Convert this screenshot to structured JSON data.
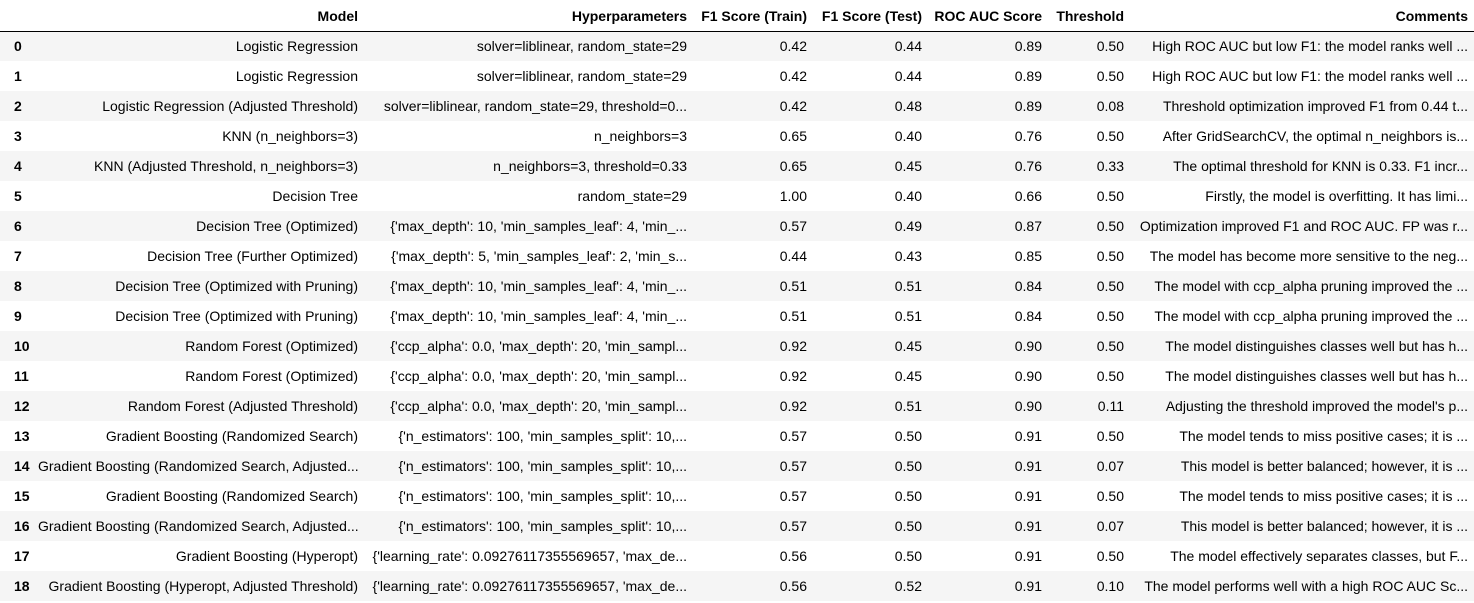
{
  "columns": {
    "index": "",
    "model": "Model",
    "hyperparameters": "Hyperparameters",
    "f1_train": "F1 Score (Train)",
    "f1_test": "F1 Score (Test)",
    "roc_auc": "ROC AUC Score",
    "threshold": "Threshold",
    "comments": "Comments"
  },
  "rows": [
    {
      "index": "0",
      "model": "Logistic Regression",
      "hyperparameters": "solver=liblinear, random_state=29",
      "f1_train": "0.42",
      "f1_test": "0.44",
      "roc_auc": "0.89",
      "threshold": "0.50",
      "comments": "High ROC AUC but low F1: the model ranks well ..."
    },
    {
      "index": "1",
      "model": "Logistic Regression",
      "hyperparameters": "solver=liblinear, random_state=29",
      "f1_train": "0.42",
      "f1_test": "0.44",
      "roc_auc": "0.89",
      "threshold": "0.50",
      "comments": "High ROC AUC but low F1: the model ranks well ..."
    },
    {
      "index": "2",
      "model": "Logistic Regression (Adjusted Threshold)",
      "hyperparameters": "solver=liblinear, random_state=29, threshold=0...",
      "f1_train": "0.42",
      "f1_test": "0.48",
      "roc_auc": "0.89",
      "threshold": "0.08",
      "comments": "Threshold optimization improved F1 from 0.44 t..."
    },
    {
      "index": "3",
      "model": "KNN (n_neighbors=3)",
      "hyperparameters": "n_neighbors=3",
      "f1_train": "0.65",
      "f1_test": "0.40",
      "roc_auc": "0.76",
      "threshold": "0.50",
      "comments": "After GridSearchCV, the optimal n_neighbors is..."
    },
    {
      "index": "4",
      "model": "KNN (Adjusted Threshold, n_neighbors=3)",
      "hyperparameters": "n_neighbors=3, threshold=0.33",
      "f1_train": "0.65",
      "f1_test": "0.45",
      "roc_auc": "0.76",
      "threshold": "0.33",
      "comments": "The optimal threshold for KNN is 0.33. F1 incr..."
    },
    {
      "index": "5",
      "model": "Decision Tree",
      "hyperparameters": "random_state=29",
      "f1_train": "1.00",
      "f1_test": "0.40",
      "roc_auc": "0.66",
      "threshold": "0.50",
      "comments": "Firstly, the model is overfitting. It has limi..."
    },
    {
      "index": "6",
      "model": "Decision Tree (Optimized)",
      "hyperparameters": "{'max_depth': 10, 'min_samples_leaf': 4, 'min_...",
      "f1_train": "0.57",
      "f1_test": "0.49",
      "roc_auc": "0.87",
      "threshold": "0.50",
      "comments": "Optimization improved F1 and ROC AUC. FP was r..."
    },
    {
      "index": "7",
      "model": "Decision Tree (Further Optimized)",
      "hyperparameters": "{'max_depth': 5, 'min_samples_leaf': 2, 'min_s...",
      "f1_train": "0.44",
      "f1_test": "0.43",
      "roc_auc": "0.85",
      "threshold": "0.50",
      "comments": "The model has become more sensitive to the neg..."
    },
    {
      "index": "8",
      "model": "Decision Tree (Optimized with Pruning)",
      "hyperparameters": "{'max_depth': 10, 'min_samples_leaf': 4, 'min_...",
      "f1_train": "0.51",
      "f1_test": "0.51",
      "roc_auc": "0.84",
      "threshold": "0.50",
      "comments": "The model with ccp_alpha pruning improved the ..."
    },
    {
      "index": "9",
      "model": "Decision Tree (Optimized with Pruning)",
      "hyperparameters": "{'max_depth': 10, 'min_samples_leaf': 4, 'min_...",
      "f1_train": "0.51",
      "f1_test": "0.51",
      "roc_auc": "0.84",
      "threshold": "0.50",
      "comments": "The model with ccp_alpha pruning improved the ..."
    },
    {
      "index": "10",
      "model": "Random Forest (Optimized)",
      "hyperparameters": "{'ccp_alpha': 0.0, 'max_depth': 20, 'min_sampl...",
      "f1_train": "0.92",
      "f1_test": "0.45",
      "roc_auc": "0.90",
      "threshold": "0.50",
      "comments": "The model distinguishes classes well but has h..."
    },
    {
      "index": "11",
      "model": "Random Forest (Optimized)",
      "hyperparameters": "{'ccp_alpha': 0.0, 'max_depth': 20, 'min_sampl...",
      "f1_train": "0.92",
      "f1_test": "0.45",
      "roc_auc": "0.90",
      "threshold": "0.50",
      "comments": "The model distinguishes classes well but has h..."
    },
    {
      "index": "12",
      "model": "Random Forest (Adjusted Threshold)",
      "hyperparameters": "{'ccp_alpha': 0.0, 'max_depth': 20, 'min_sampl...",
      "f1_train": "0.92",
      "f1_test": "0.51",
      "roc_auc": "0.90",
      "threshold": "0.11",
      "comments": "Adjusting the threshold improved the model's p..."
    },
    {
      "index": "13",
      "model": "Gradient Boosting (Randomized Search)",
      "hyperparameters": "{'n_estimators': 100, 'min_samples_split': 10,...",
      "f1_train": "0.57",
      "f1_test": "0.50",
      "roc_auc": "0.91",
      "threshold": "0.50",
      "comments": "The model tends to miss positive cases; it is ..."
    },
    {
      "index": "14",
      "model": "Gradient Boosting (Randomized Search, Adjusted...",
      "hyperparameters": "{'n_estimators': 100, 'min_samples_split': 10,...",
      "f1_train": "0.57",
      "f1_test": "0.50",
      "roc_auc": "0.91",
      "threshold": "0.07",
      "comments": "This model is better balanced; however, it is ..."
    },
    {
      "index": "15",
      "model": "Gradient Boosting (Randomized Search)",
      "hyperparameters": "{'n_estimators': 100, 'min_samples_split': 10,...",
      "f1_train": "0.57",
      "f1_test": "0.50",
      "roc_auc": "0.91",
      "threshold": "0.50",
      "comments": "The model tends to miss positive cases; it is ..."
    },
    {
      "index": "16",
      "model": "Gradient Boosting (Randomized Search, Adjusted...",
      "hyperparameters": "{'n_estimators': 100, 'min_samples_split': 10,...",
      "f1_train": "0.57",
      "f1_test": "0.50",
      "roc_auc": "0.91",
      "threshold": "0.07",
      "comments": "This model is better balanced; however, it is ..."
    },
    {
      "index": "17",
      "model": "Gradient Boosting (Hyperopt)",
      "hyperparameters": "{'learning_rate': 0.09276117355569657, 'max_de...",
      "f1_train": "0.56",
      "f1_test": "0.50",
      "roc_auc": "0.91",
      "threshold": "0.50",
      "comments": "The model effectively separates classes, but F..."
    },
    {
      "index": "18",
      "model": "Gradient Boosting (Hyperopt, Adjusted Threshold)",
      "hyperparameters": "{'learning_rate': 0.09276117355569657, 'max_de...",
      "f1_train": "0.56",
      "f1_test": "0.52",
      "roc_auc": "0.91",
      "threshold": "0.10",
      "comments": "The model performs well with a high ROC AUC Sc..."
    }
  ]
}
